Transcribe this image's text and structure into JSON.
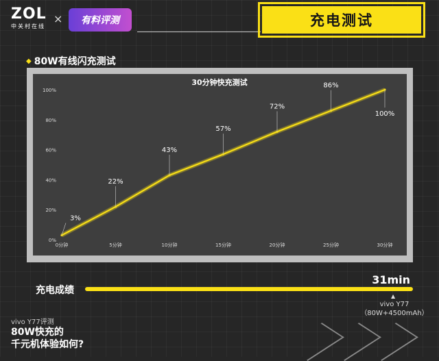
{
  "header": {
    "logo": "ZOL",
    "logo_sub": "中关村在线",
    "separator": "×",
    "badge": "有料评测",
    "title": "充电测试"
  },
  "section": {
    "title": "80W有线闪充测试"
  },
  "chart_data": {
    "type": "line",
    "title": "30分钟快充测试",
    "categories": [
      "0分钟",
      "5分钟",
      "10分钟",
      "15分钟",
      "20分钟",
      "25分钟",
      "30分钟"
    ],
    "series": [
      {
        "values": [
          3,
          22,
          43,
          57,
          72,
          86,
          100
        ]
      }
    ],
    "data_labels": [
      "3%",
      "22%",
      "43%",
      "57%",
      "72%",
      "86%",
      "100%"
    ],
    "y_ticks": [
      "0%",
      "20%",
      "40%",
      "60%",
      "80%",
      "100%"
    ],
    "ylim": [
      0,
      100
    ],
    "grid": false,
    "line_color": "#fae016"
  },
  "result": {
    "label": "充电成绩",
    "value": "31min",
    "device": "vivo Y77",
    "device_spec": "（80W+4500mAh）"
  },
  "footer": {
    "small": "vivo Y77评测",
    "line1": "80W快充的",
    "line2": "千元机体验如何?"
  }
}
